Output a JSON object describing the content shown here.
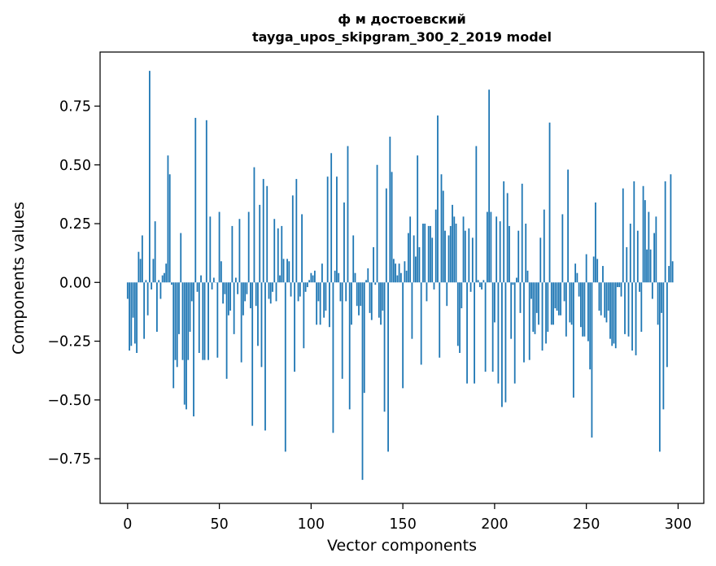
{
  "chart_data": {
    "type": "bar",
    "title": "ф м достоевский",
    "subtitle": "tayga_upos_skipgram_300_2_2019 model",
    "xlabel": "Vector components",
    "ylabel": "Components values",
    "xlim": [
      -15,
      314
    ],
    "ylim": [
      -0.94,
      0.98
    ],
    "xticks": [
      0,
      50,
      100,
      150,
      200,
      250,
      300
    ],
    "xtick_labels": [
      "0",
      "50",
      "100",
      "150",
      "200",
      "250",
      "300"
    ],
    "yticks": [
      -0.75,
      -0.5,
      -0.25,
      0.0,
      0.25,
      0.5,
      0.75
    ],
    "ytick_labels": [
      "−0.75",
      "−0.50",
      "−0.25",
      "0.00",
      "0.25",
      "0.50",
      "0.75"
    ],
    "grid": false,
    "legend": "none",
    "bar_color": "#1f77b4",
    "values": [
      -0.07,
      -0.29,
      -0.27,
      -0.15,
      -0.26,
      -0.3,
      0.13,
      0.1,
      0.2,
      -0.24,
      0.01,
      -0.14,
      0.9,
      -0.03,
      0.1,
      0.26,
      -0.21,
      0.01,
      -0.07,
      0.03,
      0.04,
      0.08,
      0.54,
      0.46,
      -0.01,
      -0.45,
      -0.33,
      -0.36,
      -0.22,
      0.21,
      -0.33,
      -0.52,
      -0.54,
      -0.33,
      -0.21,
      -0.08,
      -0.57,
      0.7,
      -0.04,
      -0.3,
      0.03,
      -0.33,
      -0.33,
      0.69,
      -0.33,
      0.28,
      -0.03,
      0.02,
      0.0,
      -0.32,
      0.3,
      0.09,
      -0.09,
      -0.05,
      -0.41,
      -0.14,
      -0.12,
      0.24,
      -0.22,
      0.02,
      -0.05,
      0.27,
      -0.34,
      -0.14,
      -0.08,
      -0.05,
      0.3,
      -0.11,
      -0.61,
      0.49,
      -0.1,
      -0.27,
      0.33,
      -0.36,
      0.44,
      -0.63,
      0.41,
      -0.07,
      -0.09,
      -0.04,
      0.27,
      -0.08,
      0.23,
      0.03,
      0.24,
      0.1,
      -0.72,
      0.1,
      0.09,
      -0.06,
      0.37,
      -0.38,
      0.44,
      -0.08,
      -0.06,
      0.29,
      -0.28,
      -0.04,
      -0.02,
      0.01,
      0.04,
      0.03,
      0.05,
      -0.18,
      -0.08,
      -0.18,
      0.08,
      -0.15,
      -0.12,
      0.45,
      -0.19,
      0.55,
      -0.64,
      0.05,
      0.45,
      0.04,
      -0.08,
      -0.41,
      0.34,
      -0.08,
      0.58,
      -0.54,
      -0.18,
      0.2,
      0.04,
      -0.1,
      -0.14,
      -0.1,
      -0.84,
      -0.47,
      0.01,
      0.06,
      -0.13,
      -0.16,
      0.15,
      -0.01,
      0.5,
      -0.15,
      -0.18,
      -0.12,
      -0.55,
      0.4,
      -0.72,
      0.62,
      0.47,
      0.1,
      0.08,
      0.03,
      0.08,
      0.04,
      -0.45,
      0.09,
      0.05,
      0.21,
      0.28,
      -0.24,
      0.2,
      0.11,
      0.54,
      0.15,
      -0.35,
      0.25,
      0.25,
      -0.08,
      0.24,
      0.24,
      0.19,
      -0.03,
      0.31,
      0.71,
      -0.32,
      0.46,
      0.39,
      0.22,
      -0.1,
      0.2,
      0.24,
      0.33,
      0.28,
      0.25,
      -0.27,
      -0.3,
      -0.11,
      0.28,
      0.22,
      -0.43,
      0.23,
      -0.04,
      0.19,
      -0.43,
      0.58,
      0.01,
      -0.02,
      -0.03,
      0.01,
      -0.38,
      0.3,
      0.82,
      0.3,
      -0.38,
      -0.17,
      0.28,
      -0.43,
      0.26,
      -0.53,
      0.43,
      -0.51,
      0.38,
      0.24,
      -0.24,
      -0.01,
      -0.43,
      0.02,
      0.22,
      -0.13,
      0.42,
      -0.34,
      0.25,
      0.05,
      -0.33,
      -0.07,
      -0.21,
      -0.22,
      -0.13,
      -0.18,
      0.19,
      -0.29,
      0.31,
      -0.26,
      -0.21,
      0.68,
      -0.18,
      -0.18,
      -0.11,
      -0.12,
      -0.14,
      -0.14,
      0.29,
      -0.08,
      -0.23,
      0.48,
      -0.17,
      -0.18,
      -0.49,
      0.08,
      0.04,
      -0.06,
      -0.19,
      -0.23,
      -0.23,
      0.12,
      -0.25,
      -0.37,
      -0.66,
      0.11,
      0.34,
      0.1,
      -0.12,
      -0.14,
      0.07,
      -0.15,
      -0.17,
      -0.12,
      -0.24,
      -0.27,
      -0.26,
      -0.28,
      -0.02,
      -0.02,
      -0.06,
      0.4,
      -0.22,
      0.15,
      -0.23,
      0.25,
      -0.29,
      0.43,
      -0.31,
      0.22,
      -0.04,
      -0.21,
      0.41,
      0.35,
      0.14,
      0.3,
      0.14,
      -0.07,
      0.21,
      0.28,
      -0.18,
      -0.72,
      -0.13,
      -0.54,
      0.43,
      -0.36,
      0.07,
      0.46,
      0.09
    ]
  }
}
